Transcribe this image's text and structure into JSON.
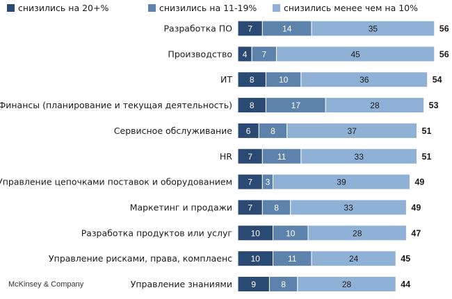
{
  "chart_data": {
    "type": "bar",
    "orientation": "horizontal",
    "stacked": true,
    "legend_position": "top",
    "grid": false,
    "categories": [
      "Разработка ПО",
      "Производство",
      "ИТ",
      "Финансы (планирование и текущая деятельность)",
      "Сервисное обслуживание",
      "HR",
      "Управление цепочками поставок и оборудованием",
      "Маркетинг и продажи",
      "Разработка продуктов или услуг",
      "Управление рисками, права, комплаенс",
      "Управление знаниями"
    ],
    "series": [
      {
        "name": "снизились на 20+%",
        "color": "#2b4a73",
        "text_color": "#ffffff",
        "values": [
          7,
          4,
          8,
          8,
          6,
          7,
          7,
          7,
          10,
          10,
          9
        ]
      },
      {
        "name": "снизились на 11-19%",
        "color": "#5d82ab",
        "text_color": "#ffffff",
        "values": [
          14,
          7,
          10,
          17,
          8,
          11,
          3,
          8,
          10,
          11,
          8
        ]
      },
      {
        "name": "снизились менее чем на 10%",
        "color": "#8fb1d6",
        "text_color": "#1a1a1a",
        "values": [
          35,
          45,
          36,
          28,
          37,
          33,
          39,
          33,
          28,
          24,
          28
        ]
      }
    ],
    "totals": [
      56,
      56,
      54,
      53,
      51,
      51,
      49,
      49,
      47,
      45,
      44
    ]
  },
  "source": "McKinsey & Company"
}
